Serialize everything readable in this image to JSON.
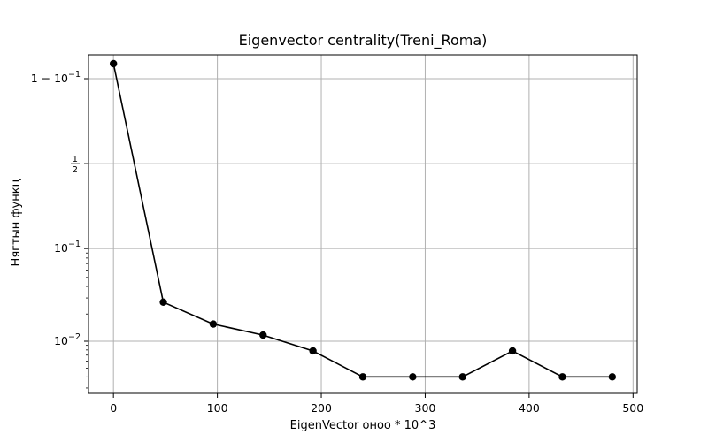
{
  "chart_data": {
    "type": "line",
    "title": "Eigenvector centrality(Treni_Roma)",
    "xlabel": "EigenVector оноо * 10^3",
    "ylabel": "Нягтын функц",
    "x_scale": "linear",
    "y_scale": "logit",
    "xlim": [
      -24,
      504
    ],
    "x_ticks": [
      {
        "value": 0,
        "label": "0"
      },
      {
        "value": 100,
        "label": "100"
      },
      {
        "value": 200,
        "label": "200"
      },
      {
        "value": 300,
        "label": "300"
      },
      {
        "value": 400,
        "label": "400"
      },
      {
        "value": 500,
        "label": "500"
      }
    ],
    "y_ticks": [
      {
        "value": 0.9,
        "label": "1 − 10^−1"
      },
      {
        "value": 0.5,
        "label": "1/2"
      },
      {
        "value": 0.1,
        "label": "10^−1"
      },
      {
        "value": 0.01,
        "label": "10^−2"
      }
    ],
    "grid": true,
    "series": [
      {
        "color": "#000000",
        "marker": "circle",
        "x": [
          0,
          48,
          96,
          144,
          192,
          240,
          288,
          336,
          384,
          432,
          480
        ],
        "y": [
          0.93,
          0.027,
          0.0155,
          0.0117,
          0.0078,
          0.004,
          0.004,
          0.004,
          0.0078,
          0.004,
          0.004
        ]
      }
    ]
  }
}
